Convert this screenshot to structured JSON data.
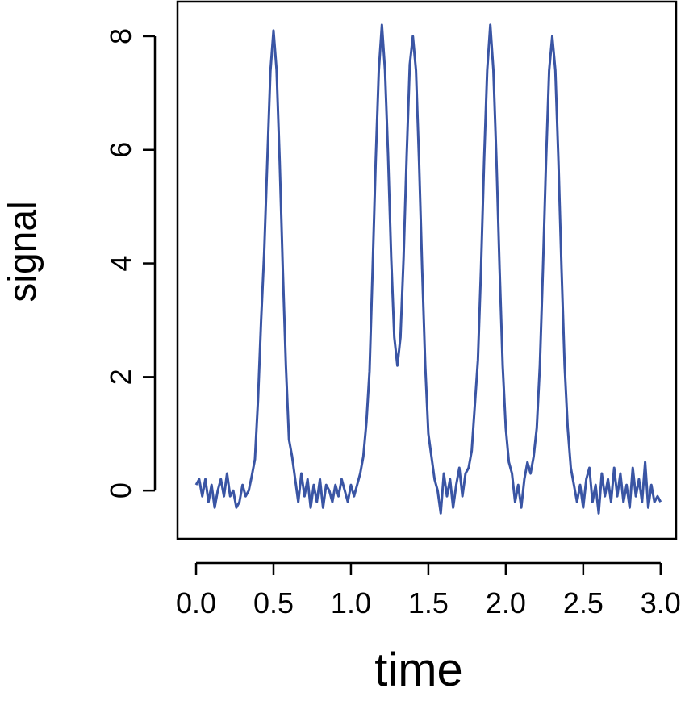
{
  "chart_data": {
    "type": "line",
    "xlabel": "time",
    "ylabel": "signal",
    "x": [
      0,
      0.02,
      0.04,
      0.06,
      0.08,
      0.1,
      0.12,
      0.14,
      0.16,
      0.18,
      0.2,
      0.22,
      0.24,
      0.26,
      0.28,
      0.3,
      0.32,
      0.34,
      0.36,
      0.38,
      0.4,
      0.42,
      0.44,
      0.46,
      0.48,
      0.5,
      0.52,
      0.54,
      0.56,
      0.58,
      0.6,
      0.62,
      0.64,
      0.66,
      0.68,
      0.7,
      0.72,
      0.74,
      0.76,
      0.78,
      0.8,
      0.82,
      0.84,
      0.86,
      0.88,
      0.9,
      0.92,
      0.94,
      0.96,
      0.98,
      1,
      1.02,
      1.04,
      1.06,
      1.08,
      1.1,
      1.12,
      1.14,
      1.16,
      1.18,
      1.2,
      1.22,
      1.24,
      1.26,
      1.28,
      1.3,
      1.32,
      1.34,
      1.36,
      1.38,
      1.4,
      1.42,
      1.44,
      1.46,
      1.48,
      1.5,
      1.52,
      1.54,
      1.56,
      1.58,
      1.6,
      1.62,
      1.64,
      1.66,
      1.68,
      1.7,
      1.72,
      1.74,
      1.76,
      1.78,
      1.8,
      1.82,
      1.84,
      1.86,
      1.88,
      1.9,
      1.92,
      1.94,
      1.96,
      1.98,
      2,
      2.02,
      2.04,
      2.06,
      2.08,
      2.1,
      2.12,
      2.14,
      2.16,
      2.18,
      2.2,
      2.22,
      2.24,
      2.26,
      2.28,
      2.3,
      2.32,
      2.34,
      2.36,
      2.38,
      2.4,
      2.42,
      2.44,
      2.46,
      2.48,
      2.5,
      2.52,
      2.54,
      2.56,
      2.58,
      2.6,
      2.62,
      2.64,
      2.66,
      2.68,
      2.7,
      2.72,
      2.74,
      2.76,
      2.78,
      2.8,
      2.82,
      2.84,
      2.86,
      2.88,
      2.9,
      2.92,
      2.94,
      2.96,
      2.98,
      3
    ],
    "series": [
      {
        "name": "signal",
        "color": "#3a55a4",
        "values": [
          0.1,
          0.2,
          -0.1,
          0.2,
          -0.2,
          0.1,
          -0.3,
          0,
          0.2,
          -0.1,
          0.3,
          -0.1,
          0,
          -0.3,
          -0.2,
          0.1,
          -0.1,
          0,
          0.26,
          0.55,
          1.6,
          3,
          4.2,
          5.81,
          7.38,
          8.1,
          7.4,
          5.8,
          3.9,
          2.2,
          0.9,
          0.6,
          0.2,
          -0.2,
          0.3,
          -0.1,
          0.2,
          -0.3,
          0.1,
          -0.2,
          0.2,
          -0.3,
          0.1,
          0,
          -0.2,
          0.1,
          -0.1,
          0.2,
          0,
          -0.2,
          0.1,
          -0.1,
          0.1,
          0.3,
          0.6,
          1.2,
          2.1,
          3.9,
          5.8,
          7.4,
          8.2,
          7.4,
          5.9,
          4.1,
          2.7,
          2.2,
          2.7,
          4.1,
          5.9,
          7.5,
          8,
          7.4,
          5.8,
          3.9,
          2.2,
          1,
          0.6,
          0.2,
          0,
          -0.4,
          0.3,
          -0.1,
          0.2,
          -0.3,
          0.1,
          0.4,
          -0.1,
          0.3,
          0.4,
          0.7,
          1.5,
          2.3,
          3.9,
          5.8,
          7.4,
          8.2,
          7.4,
          5.8,
          3.9,
          2.2,
          1.1,
          0.5,
          0.3,
          -0.2,
          0.1,
          -0.3,
          0.2,
          0.5,
          0.3,
          0.6,
          1.1,
          2.2,
          3.9,
          5.8,
          7.4,
          8,
          7.4,
          5.8,
          3.9,
          2.2,
          1.1,
          0.4,
          0.1,
          -0.2,
          0.1,
          -0.3,
          0.2,
          0.4,
          -0.2,
          0.1,
          -0.4,
          0.3,
          -0.1,
          0.2,
          -0.2,
          0.4,
          -0.1,
          0.3,
          -0.2,
          0.1,
          -0.3,
          0.4,
          -0.1,
          0.2,
          -0.2,
          0.5,
          -0.3,
          0.1,
          -0.2,
          -0.1,
          -0.2
        ]
      }
    ],
    "xlim": [
      -0.12,
      3.1
    ],
    "ylim": [
      -0.85,
      8.61
    ],
    "xticks": [
      {
        "value": 0,
        "label": "0.0"
      },
      0.5,
      {
        "value": 1,
        "label": "1.0"
      },
      1.5,
      {
        "value": 2,
        "label": "2.0"
      },
      2.5,
      {
        "value": 3,
        "label": "3.0"
      }
    ],
    "yticks": [
      0,
      2,
      4,
      6,
      8
    ]
  }
}
